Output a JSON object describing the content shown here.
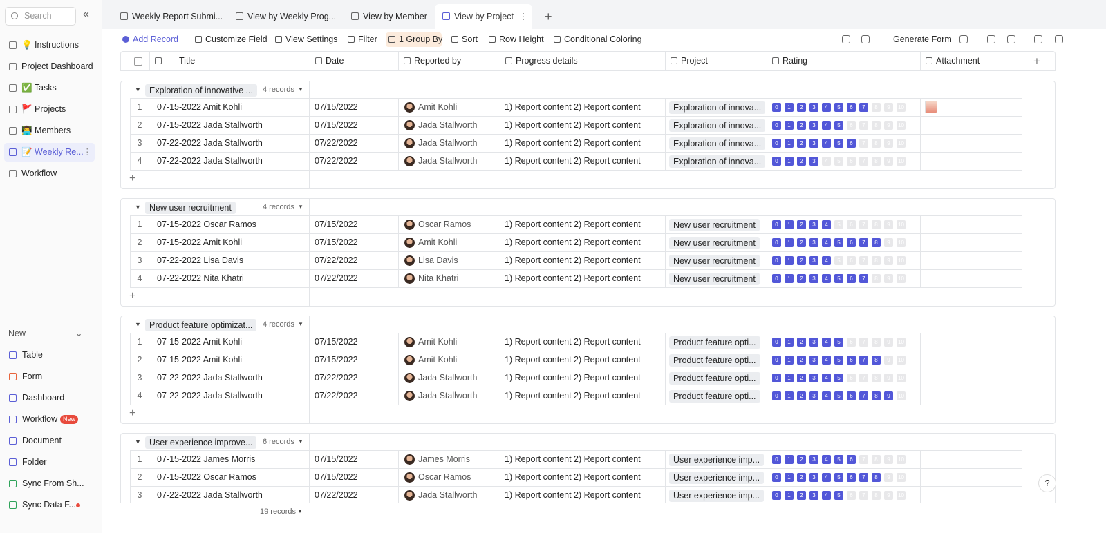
{
  "sidebar": {
    "search_placeholder": "Search",
    "items": [
      "💡 Instructions",
      "Project Dashboard",
      "✅ Tasks",
      "🚩 Projects",
      "👨‍💻 Members",
      "📝 Weekly Re...",
      "Workflow"
    ],
    "active_item": 5,
    "new_title": "New",
    "new_items": [
      "Table",
      "Form",
      "Dashboard",
      "Workflow",
      "Document",
      "Folder",
      "Sync From Sh...",
      "Sync Data F..."
    ],
    "new_badge": "New"
  },
  "tabs": [
    "Weekly Report Submi...",
    "View by Weekly Prog...",
    "View by Member",
    "View by Project"
  ],
  "active_tab": 3,
  "toolbar": [
    "Add Record",
    "Customize Field",
    "View Settings",
    "Filter",
    "1 Group By",
    "Sort",
    "Row Height",
    "Conditional Coloring"
  ],
  "toolbar_right": "Generate Form",
  "columns": [
    "Title",
    "Date",
    "Reported by",
    "Progress details",
    "Project",
    "Rating",
    "Attachment"
  ],
  "rating_scale": [
    0,
    1,
    2,
    3,
    4,
    5,
    6,
    7,
    8,
    9,
    10
  ],
  "groups": [
    {
      "name": "Exploration of innovative ...",
      "count": "4 records",
      "rows": [
        {
          "no": 1,
          "title": "07-15-2022 Amit Kohli",
          "date": "07/15/2022",
          "reporter": "Amit Kohli",
          "progress": "1) Report content 2) Report content",
          "project": "Exploration of innova...",
          "rating": 7
        },
        {
          "no": 2,
          "title": "07-15-2022 Jada Stallworth",
          "date": "07/15/2022",
          "reporter": "Jada Stallworth",
          "progress": "1) Report content 2) Report content",
          "project": "Exploration of innova...",
          "rating": 5
        },
        {
          "no": 3,
          "title": "07-22-2022 Jada Stallworth",
          "date": "07/22/2022",
          "reporter": "Jada Stallworth",
          "progress": "1) Report content 2) Report content",
          "project": "Exploration of innova...",
          "rating": 6
        },
        {
          "no": 4,
          "title": "07-22-2022 Jada Stallworth",
          "date": "07/22/2022",
          "reporter": "Jada Stallworth",
          "progress": "1) Report content 2) Report content",
          "project": "Exploration of innova...",
          "rating": 3
        }
      ]
    },
    {
      "name": "New user recruitment",
      "count": "4 records",
      "rows": [
        {
          "no": 1,
          "title": "07-15-2022 Oscar Ramos",
          "date": "07/15/2022",
          "reporter": "Oscar Ramos",
          "progress": "1) Report content 2) Report content",
          "project": "New user recruitment",
          "rating": 4
        },
        {
          "no": 2,
          "title": "07-15-2022 Amit Kohli",
          "date": "07/15/2022",
          "reporter": "Amit Kohli",
          "progress": "1) Report content 2) Report content",
          "project": "New user recruitment",
          "rating": 8
        },
        {
          "no": 3,
          "title": "07-22-2022 Lisa Davis",
          "date": "07/22/2022",
          "reporter": "Lisa Davis",
          "progress": "1) Report content 2) Report content",
          "project": "New user recruitment",
          "rating": 4
        },
        {
          "no": 4,
          "title": "07-22-2022 Nita Khatri",
          "date": "07/22/2022",
          "reporter": "Nita Khatri",
          "progress": "1) Report content 2) Report content",
          "project": "New user recruitment",
          "rating": 7
        }
      ]
    },
    {
      "name": "Product feature optimizat...",
      "count": "4 records",
      "rows": [
        {
          "no": 1,
          "title": "07-15-2022 Amit Kohli",
          "date": "07/15/2022",
          "reporter": "Amit Kohli",
          "progress": "1) Report content 2) Report content",
          "project": "Product feature opti...",
          "rating": 5
        },
        {
          "no": 2,
          "title": "07-15-2022 Amit Kohli",
          "date": "07/15/2022",
          "reporter": "Amit Kohli",
          "progress": "1) Report content 2) Report content",
          "project": "Product feature opti...",
          "rating": 8
        },
        {
          "no": 3,
          "title": "07-22-2022 Jada Stallworth",
          "date": "07/22/2022",
          "reporter": "Jada Stallworth",
          "progress": "1) Report content 2) Report content",
          "project": "Product feature opti...",
          "rating": 5
        },
        {
          "no": 4,
          "title": "07-22-2022 Jada Stallworth",
          "date": "07/22/2022",
          "reporter": "Jada Stallworth",
          "progress": "1) Report content 2) Report content",
          "project": "Product feature opti...",
          "rating": 9
        }
      ]
    },
    {
      "name": "User experience improve...",
      "count": "6 records",
      "rows": [
        {
          "no": 1,
          "title": "07-15-2022 James Morris",
          "date": "07/15/2022",
          "reporter": "James Morris",
          "progress": "1) Report content 2) Report content",
          "project": "User experience imp...",
          "rating": 6
        },
        {
          "no": 2,
          "title": "07-15-2022 Oscar Ramos",
          "date": "07/15/2022",
          "reporter": "Oscar Ramos",
          "progress": "1) Report content 2) Report content",
          "project": "User experience imp...",
          "rating": 8
        },
        {
          "no": 3,
          "title": "07-22-2022 Jada Stallworth",
          "date": "07/22/2022",
          "reporter": "Jada Stallworth",
          "progress": "1) Report content 2) Report content",
          "project": "User experience imp...",
          "rating": 5
        }
      ]
    }
  ],
  "footer": "19 records"
}
